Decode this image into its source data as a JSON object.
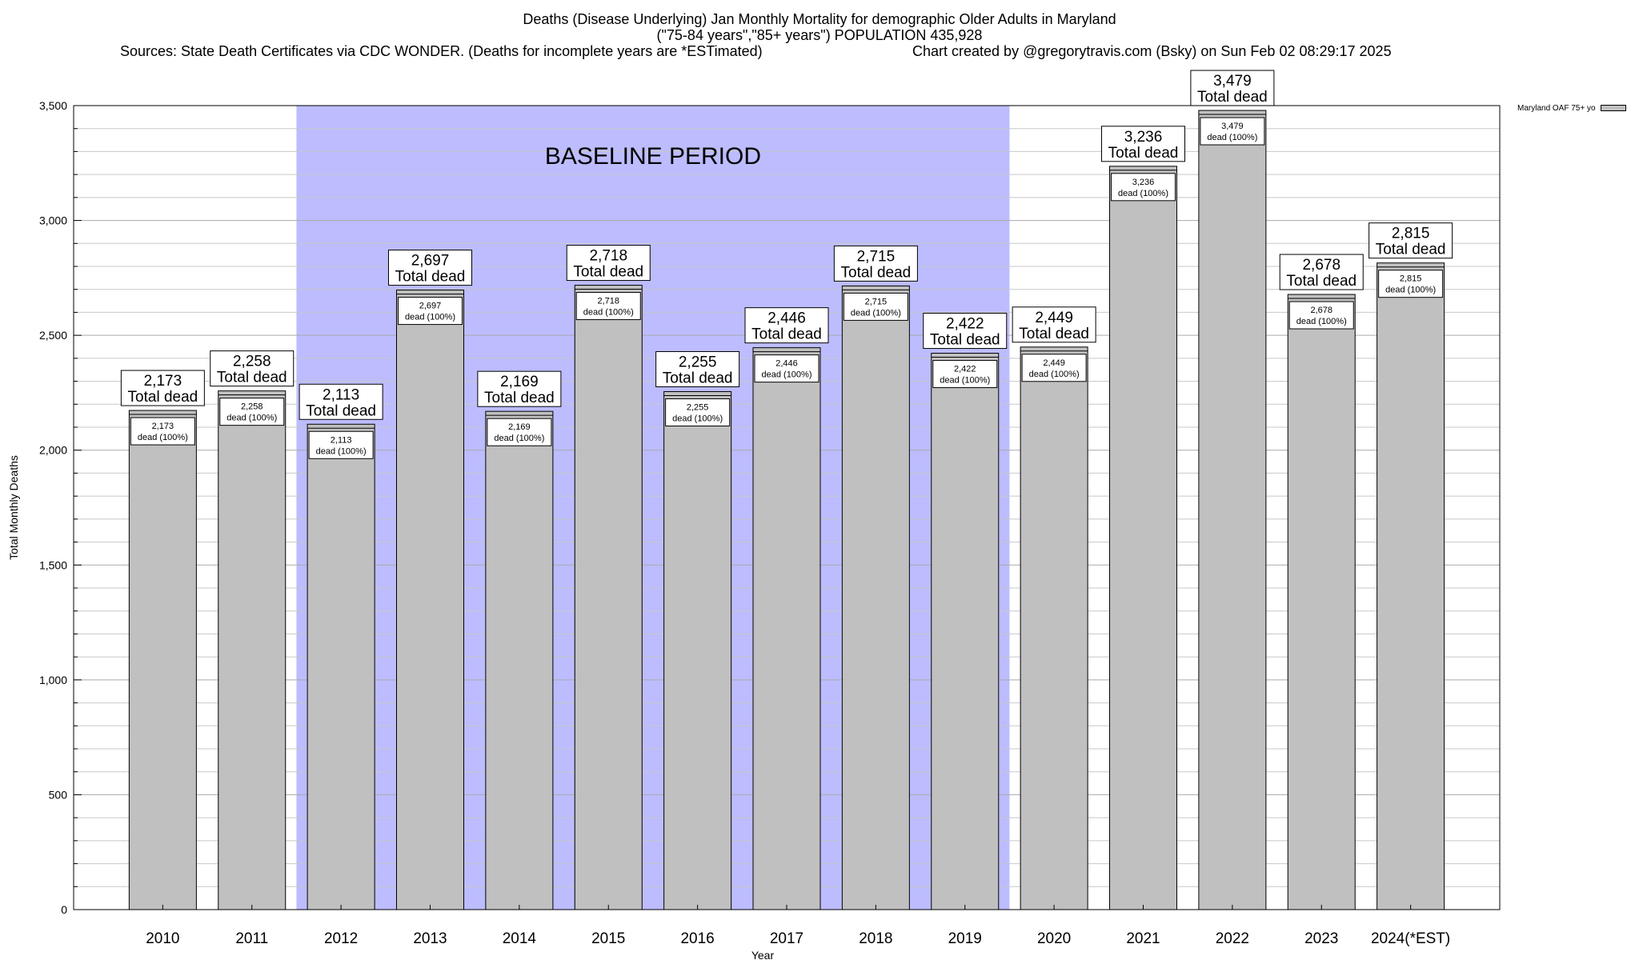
{
  "header": {
    "line1": "Deaths (Disease Underlying) Jan Monthly Mortality for demographic Older Adults in Maryland",
    "line2": "(\"75-84 years\",\"85+ years\") POPULATION 435,928",
    "sources": "Sources: State Death Certificates via CDC WONDER. (Deaths for incomplete years are *ESTimated)",
    "credit": "Chart created by @gregorytravis.com (Bsky) on Sun Feb 02 08:29:17 2025"
  },
  "chart_data": {
    "type": "bar",
    "title": "Deaths (Disease Underlying) Jan Monthly Mortality for demographic Older Adults in Maryland",
    "xlabel": "Year",
    "ylabel": "Total Monthly Deaths",
    "ylim": [
      0,
      3500
    ],
    "yticks": [
      0,
      500,
      1000,
      1500,
      2000,
      2500,
      3000,
      3500
    ],
    "ytick_labels": [
      "0",
      "500",
      "1,000",
      "1,500",
      "2,000",
      "2,500",
      "3,000",
      "3,500"
    ],
    "grid": true,
    "categories": [
      "2010",
      "2011",
      "2012",
      "2013",
      "2014",
      "2015",
      "2016",
      "2017",
      "2018",
      "2019",
      "2020",
      "2021",
      "2022",
      "2023",
      "2024(*EST)"
    ],
    "series": [
      {
        "name": "Maryland OAF 75+ yo",
        "color": "#c0c0c0",
        "values": [
          2173,
          2258,
          2113,
          2697,
          2169,
          2718,
          2255,
          2446,
          2715,
          2422,
          2449,
          3236,
          3479,
          2678,
          2815
        ],
        "value_labels": [
          "2,173",
          "2,258",
          "2,113",
          "2,697",
          "2,169",
          "2,718",
          "2,255",
          "2,446",
          "2,715",
          "2,422",
          "2,449",
          "3,236",
          "3,479",
          "2,678",
          "2,815"
        ]
      }
    ],
    "total_label_suffix": "Total dead",
    "inner_label_suffix": "dead (100%)",
    "annotation": {
      "label": "BASELINE PERIOD",
      "start": "2012",
      "end": "2019",
      "color": "#bcbcff"
    },
    "legend": {
      "placement": "top-right",
      "label": "Maryland OAF 75+ yo"
    }
  }
}
